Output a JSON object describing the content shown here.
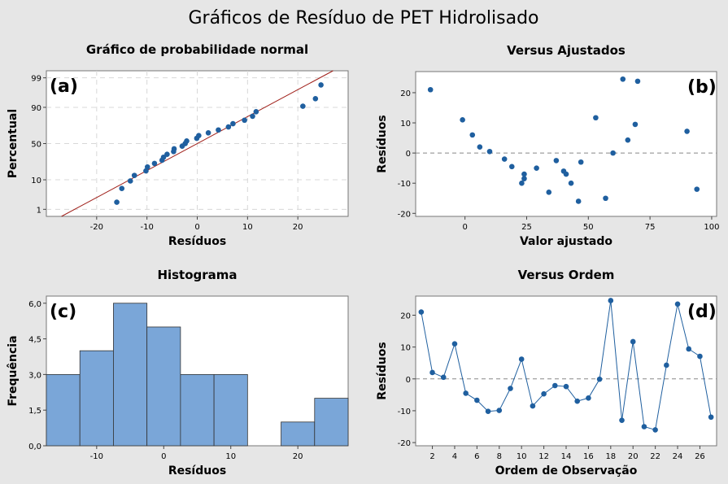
{
  "figure_title": "Gráficos de Resíduo de PET Hidrolisado",
  "colors": {
    "marker": "#1f5f9f",
    "bar_fill": "#7aa6d8",
    "fit_line": "#a0201a"
  },
  "chart_data": [
    {
      "id": "a",
      "tag": "(a)",
      "type": "scatter",
      "title": "Gráfico de probabilidade normal",
      "xlabel": "Resíduos",
      "ylabel": "Percentual",
      "xlim": [
        -30,
        30
      ],
      "xticks": [
        -20,
        -10,
        0,
        10,
        20
      ],
      "ytick_labels": [
        "1",
        "10",
        "50",
        "90",
        "99"
      ],
      "ytick_values": [
        1,
        10,
        50,
        90,
        99
      ],
      "y_scale": "normal-probability",
      "grid": true,
      "fit_line": {
        "x": [
          -27,
          27
        ],
        "y": [
          0.5,
          99.5
        ]
      },
      "points": [
        {
          "x": -16,
          "y": 1.9
        },
        {
          "x": -15,
          "y": 5.6
        },
        {
          "x": -13.3,
          "y": 9.3
        },
        {
          "x": -12.5,
          "y": 13.0
        },
        {
          "x": -10.2,
          "y": 16.7
        },
        {
          "x": -9.9,
          "y": 20.4
        },
        {
          "x": -8.5,
          "y": 24.1
        },
        {
          "x": -7,
          "y": 27.8
        },
        {
          "x": -6.7,
          "y": 31.5
        },
        {
          "x": -6,
          "y": 35.2
        },
        {
          "x": -4.7,
          "y": 38.9
        },
        {
          "x": -4.6,
          "y": 42.6
        },
        {
          "x": -3,
          "y": 46.3
        },
        {
          "x": -2.4,
          "y": 50.0
        },
        {
          "x": -2.1,
          "y": 53.7
        },
        {
          "x": -0.1,
          "y": 57.4
        },
        {
          "x": 0.3,
          "y": 61.1
        },
        {
          "x": 2.2,
          "y": 64.8
        },
        {
          "x": 4.2,
          "y": 68.5
        },
        {
          "x": 6.2,
          "y": 72.2
        },
        {
          "x": 7.1,
          "y": 75.9
        },
        {
          "x": 9.4,
          "y": 79.6
        },
        {
          "x": 11,
          "y": 83.3
        },
        {
          "x": 11.7,
          "y": 87.0
        },
        {
          "x": 21,
          "y": 90.7
        },
        {
          "x": 23.5,
          "y": 94.4
        },
        {
          "x": 24.6,
          "y": 98.1
        }
      ]
    },
    {
      "id": "b",
      "tag": "(b)",
      "type": "scatter",
      "title": "Versus Ajustados",
      "xlabel": "Valor ajustado",
      "ylabel": "Resíduos",
      "xlim": [
        -20,
        102
      ],
      "ylim": [
        -21,
        27
      ],
      "xticks": [
        0,
        25,
        50,
        75,
        100
      ],
      "yticks": [
        -20,
        -10,
        0,
        10,
        20
      ],
      "reference_line_y": 0,
      "points": [
        {
          "x": -14,
          "y": 21
        },
        {
          "x": -1,
          "y": 11
        },
        {
          "x": 3,
          "y": 6
        },
        {
          "x": 6,
          "y": 2
        },
        {
          "x": 10,
          "y": 0.5
        },
        {
          "x": 16,
          "y": -2
        },
        {
          "x": 19,
          "y": -4.5
        },
        {
          "x": 23,
          "y": -10
        },
        {
          "x": 24,
          "y": -7
        },
        {
          "x": 24,
          "y": -8.5
        },
        {
          "x": 29,
          "y": -5
        },
        {
          "x": 34,
          "y": -13
        },
        {
          "x": 37,
          "y": -2.5
        },
        {
          "x": 40,
          "y": -6
        },
        {
          "x": 41,
          "y": -7
        },
        {
          "x": 43,
          "y": -10
        },
        {
          "x": 46,
          "y": -16
        },
        {
          "x": 47,
          "y": -3
        },
        {
          "x": 53,
          "y": 11.7
        },
        {
          "x": 57,
          "y": -15
        },
        {
          "x": 60,
          "y": 0
        },
        {
          "x": 64,
          "y": 24.5
        },
        {
          "x": 66,
          "y": 4.3
        },
        {
          "x": 69,
          "y": 9.5
        },
        {
          "x": 70,
          "y": 23.8
        },
        {
          "x": 90,
          "y": 7.2
        },
        {
          "x": 94,
          "y": -12
        }
      ]
    },
    {
      "id": "c",
      "tag": "(c)",
      "type": "bar",
      "title": "Histograma",
      "xlabel": "Resíduos",
      "ylabel": "Frequência",
      "xlim": [
        -17.5,
        27.5
      ],
      "ylim": [
        0,
        6.3
      ],
      "xticks": [
        -10,
        0,
        10,
        20
      ],
      "ytick_labels": [
        "0,0",
        "1,5",
        "3,0",
        "4,5",
        "6,0"
      ],
      "ytick_values": [
        0,
        1.5,
        3,
        4.5,
        6
      ],
      "bins": [
        {
          "from": -17.5,
          "to": -12.5,
          "count": 3
        },
        {
          "from": -12.5,
          "to": -7.5,
          "count": 4
        },
        {
          "from": -7.5,
          "to": -2.5,
          "count": 6
        },
        {
          "from": -2.5,
          "to": 2.5,
          "count": 5
        },
        {
          "from": 2.5,
          "to": 7.5,
          "count": 3
        },
        {
          "from": 7.5,
          "to": 12.5,
          "count": 3
        },
        {
          "from": 12.5,
          "to": 17.5,
          "count": 0
        },
        {
          "from": 17.5,
          "to": 22.5,
          "count": 1
        },
        {
          "from": 22.5,
          "to": 27.5,
          "count": 2
        }
      ]
    },
    {
      "id": "d",
      "tag": "(d)",
      "type": "line",
      "title": "Versus Ordem",
      "xlabel": "Ordem de Observação",
      "ylabel": "Resíduos",
      "xlim": [
        0.5,
        27.5
      ],
      "ylim": [
        -21,
        26
      ],
      "xticks": [
        2,
        4,
        6,
        8,
        10,
        12,
        14,
        16,
        18,
        20,
        22,
        24,
        26
      ],
      "yticks": [
        -20,
        -10,
        0,
        10,
        20
      ],
      "reference_line_y": 0,
      "x": [
        1,
        2,
        3,
        4,
        5,
        6,
        7,
        8,
        9,
        10,
        11,
        12,
        13,
        14,
        15,
        16,
        17,
        18,
        19,
        20,
        21,
        22,
        23,
        24,
        25,
        26,
        27
      ],
      "y": [
        21,
        2,
        0.5,
        11,
        -4.5,
        -6.7,
        -10.2,
        -9.9,
        -3,
        6.2,
        -8.5,
        -4.7,
        -2.1,
        -2.4,
        -7,
        -6,
        -0.1,
        24.6,
        -13,
        11.7,
        -15,
        -16,
        4.3,
        23.5,
        9.4,
        7.1,
        -12
      ]
    }
  ]
}
